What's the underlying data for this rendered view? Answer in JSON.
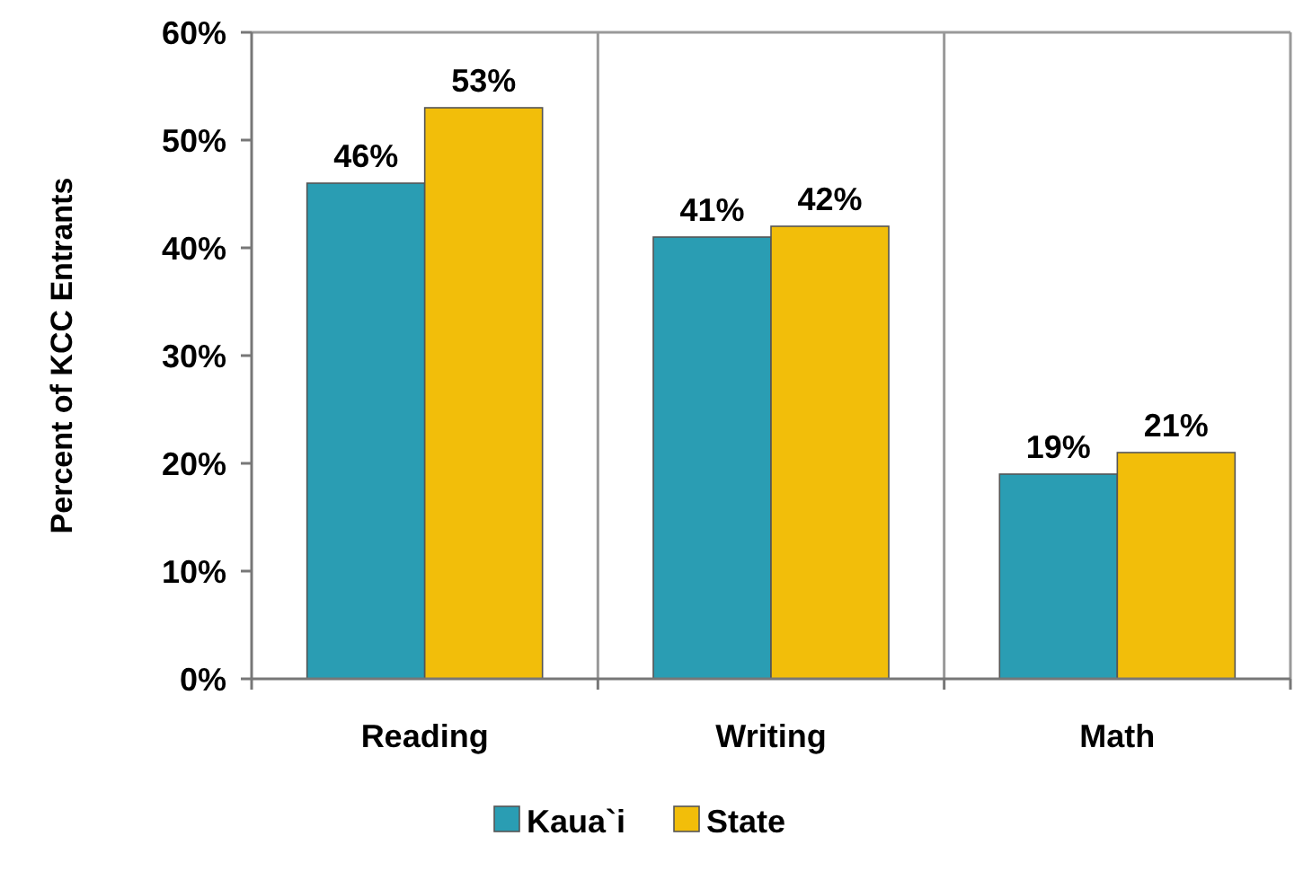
{
  "chart_data": {
    "type": "bar",
    "ylabel": "Percent of KCC Entrants",
    "categories": [
      "Reading",
      "Writing",
      "Math"
    ],
    "series": [
      {
        "name": "Kaua`i",
        "color": "#2a9db3",
        "values": [
          46,
          41,
          19
        ],
        "value_labels": [
          "46%",
          "41%",
          "19%"
        ]
      },
      {
        "name": "State",
        "color": "#f2be0a",
        "values": [
          53,
          42,
          21
        ],
        "value_labels": [
          "53%",
          "42%",
          "21%"
        ]
      }
    ],
    "ylim": [
      0,
      60
    ],
    "yticks": [
      {
        "value": 0,
        "label": "0%"
      },
      {
        "value": 10,
        "label": "10%"
      },
      {
        "value": 20,
        "label": "20%"
      },
      {
        "value": 30,
        "label": "30%"
      },
      {
        "value": 40,
        "label": "40%"
      },
      {
        "value": 50,
        "label": "50%"
      },
      {
        "value": 60,
        "label": "60%"
      }
    ],
    "grid": "x",
    "legend": "bottom"
  }
}
